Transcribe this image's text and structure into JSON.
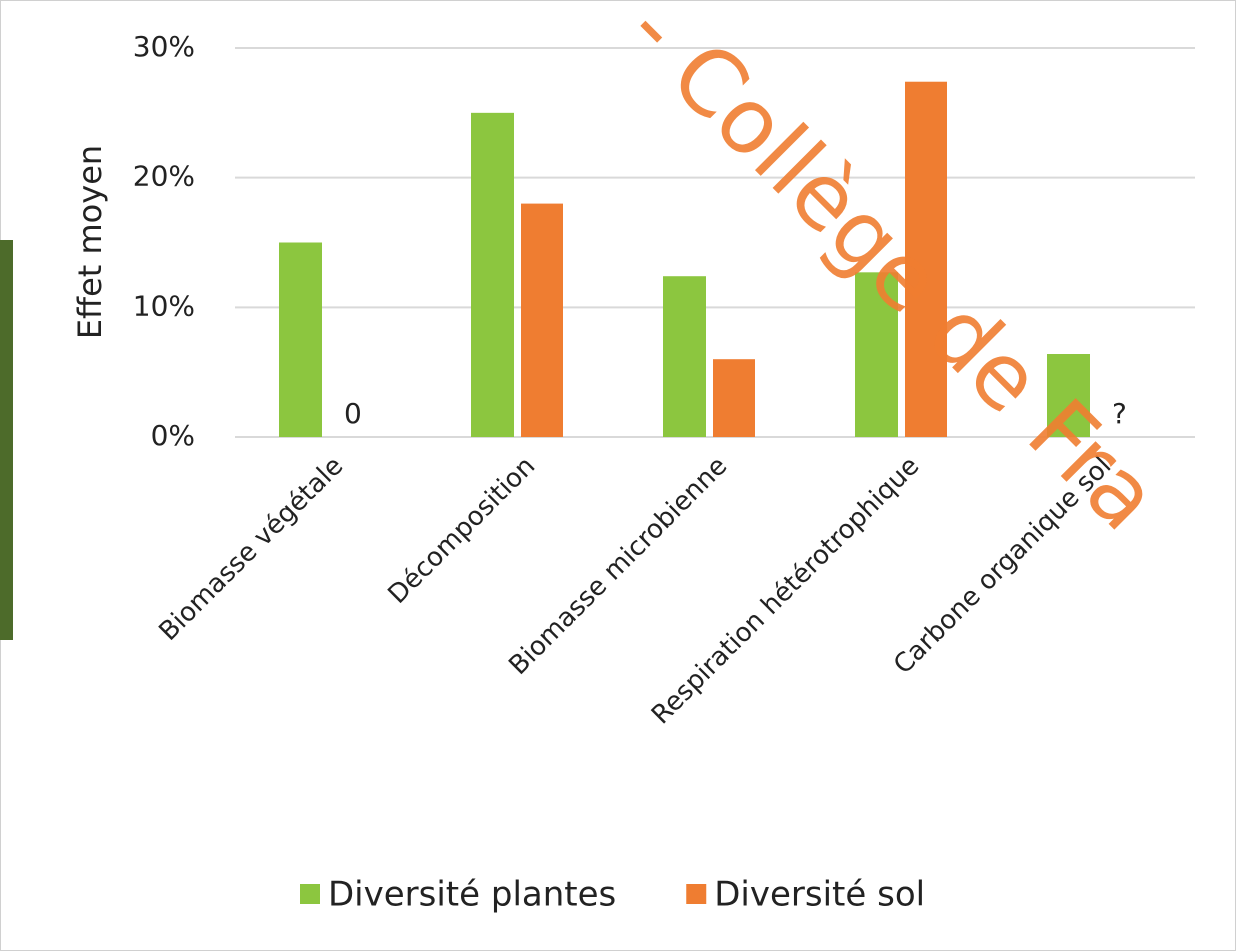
{
  "chart_data": {
    "type": "bar",
    "y_label": "Effet moyen",
    "watermark": "- Collège de Fra",
    "categories": [
      "Biomasse végétale",
      "Décomposition",
      "Biomasse microbienne",
      "Respiration hétérotrophique",
      "Carbone organique sol"
    ],
    "series": [
      {
        "name": "Diversité plantes",
        "color": "#8cc63f",
        "values": [
          15,
          25,
          12.4,
          12.7,
          6.4
        ]
      },
      {
        "name": "Diversité sol",
        "color": "#ef7d31",
        "values": [
          0,
          18,
          6,
          27.4,
          null
        ],
        "value_labels": [
          "0",
          null,
          null,
          null,
          "?"
        ]
      }
    ],
    "ylim": [
      0,
      30
    ],
    "yticks": [
      {
        "value": 0,
        "label": "0%"
      },
      {
        "value": 10,
        "label": "10%"
      },
      {
        "value": 20,
        "label": "20%"
      },
      {
        "value": 30,
        "label": "30%"
      }
    ],
    "grid": true,
    "legend": "bottom"
  }
}
